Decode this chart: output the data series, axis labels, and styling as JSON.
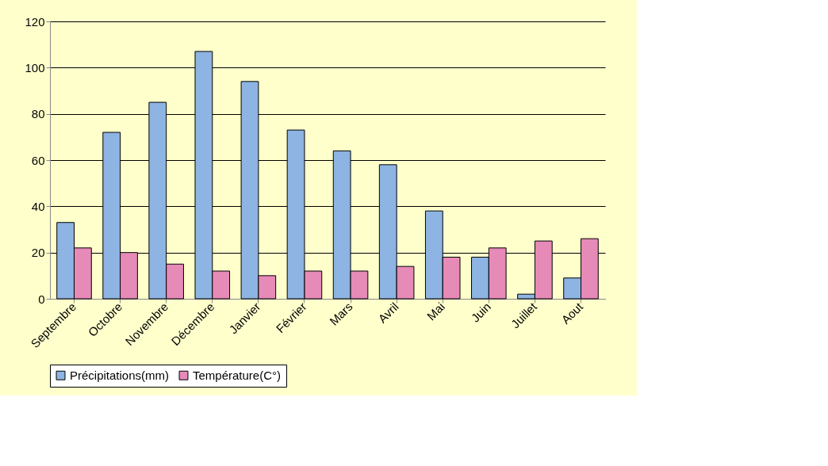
{
  "chart_data": {
    "type": "bar",
    "categories": [
      "Septembre",
      "Octobre",
      "Novembre",
      "Décembre",
      "Janvier",
      "Février",
      "Mars",
      "Avril",
      "Mai",
      "Juin",
      "Juillet",
      "Aout"
    ],
    "series": [
      {
        "name": "Précipitations(mm)",
        "color": "#8db4e2",
        "values": [
          33,
          72,
          85,
          107,
          94,
          73,
          64,
          58,
          38,
          18,
          2,
          9
        ]
      },
      {
        "name": "Température(C°)",
        "color": "#e68ab8",
        "values": [
          22,
          20,
          15,
          12,
          10,
          12,
          12,
          14,
          18,
          22,
          25,
          26
        ]
      }
    ],
    "ylim": [
      0,
      120
    ],
    "yticks": [
      0,
      20,
      40,
      60,
      80,
      100,
      120
    ],
    "grid": "y",
    "legend": "bottom"
  }
}
